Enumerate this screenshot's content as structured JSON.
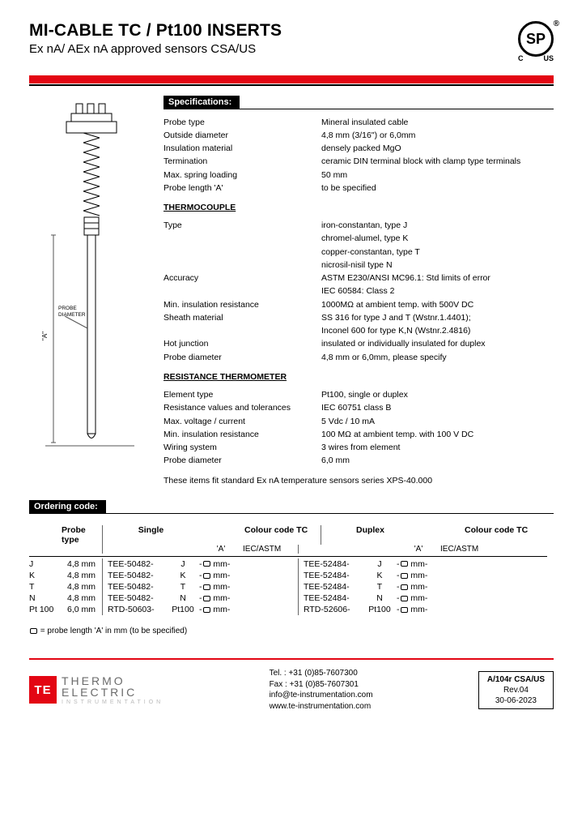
{
  "header": {
    "title": "MI-CABLE TC / Pt100 INSERTS",
    "subtitle": "Ex nA/ AEx nA approved sensors CSA/US",
    "csa_center": "SP",
    "csa_left": "C",
    "csa_right": "US",
    "red": "#e30613"
  },
  "diagram": {
    "label_a": "\"A\"",
    "label_probe": "PROBE",
    "label_diameter": "DIAMETER"
  },
  "sections": {
    "specs_title": "Specifications:",
    "ordering_title": "Ordering code:"
  },
  "specs": {
    "general": [
      {
        "label": "Probe type",
        "value": "Mineral insulated cable"
      },
      {
        "label": "Outside diameter",
        "value": "4,8 mm (3/16\") or 6,0mm"
      },
      {
        "label": "Insulation material",
        "value": "densely packed MgO"
      },
      {
        "label": "Termination",
        "value": "ceramic DIN terminal block with clamp type terminals"
      },
      {
        "label": "Max. spring loading",
        "value": "50 mm"
      },
      {
        "label": "Probe length 'A'",
        "value": "to be specified"
      }
    ],
    "tc_head": "THERMOCOUPLE",
    "tc": [
      {
        "label": "Type",
        "value": "iron-constantan, type J"
      },
      {
        "label": "",
        "value": "chromel-alumel, type K"
      },
      {
        "label": "",
        "value": "copper-constantan, type T"
      },
      {
        "label": "",
        "value": "nicrosil-nisil type N"
      },
      {
        "label": "Accuracy",
        "value": "ASTM E230/ANSI MC96.1: Std limits of error"
      },
      {
        "label": "",
        "value": "IEC 60584: Class 2"
      },
      {
        "label": "Min. insulation resistance",
        "value": "1000MΩ at ambient temp. with 500V DC"
      },
      {
        "label": "Sheath material",
        "value": "SS 316 for type J and T (Wstnr.1.4401);"
      },
      {
        "label": "",
        "value": "Inconel 600 for type K,N (Wstnr.2.4816)"
      },
      {
        "label": "Hot junction",
        "value": "insulated or individually insulated for duplex"
      },
      {
        "label": "Probe diameter",
        "value": "4,8 mm or 6,0mm, please specify"
      }
    ],
    "rtd_head": "RESISTANCE THERMOMETER",
    "rtd": [
      {
        "label": "Element type",
        "value": "Pt100, single or duplex"
      },
      {
        "label": "Resistance values and tolerances",
        "value": "IEC 60751 class B"
      },
      {
        "label": "Max. voltage / current",
        "value": "5 Vdc / 10 mA"
      },
      {
        "label": "Min. insulation resistance",
        "value": "100 MΩ at ambient temp. with 100 V DC"
      },
      {
        "label": "Wiring system",
        "value": "3 wires from element"
      },
      {
        "label": "Probe diameter",
        "value": "6,0 mm"
      }
    ],
    "fit_note": "These items fit standard  Ex nA temperature sensors series XPS-40.000"
  },
  "ordering": {
    "head": {
      "probe": "Probe type",
      "single": "Single",
      "cc": "Colour code TC",
      "duplex": "Duplex"
    },
    "sub": {
      "a": "'A'",
      "iec": "IEC/ASTM"
    },
    "rows": [
      {
        "t": "J",
        "d": "4,8 mm",
        "s": "TEE-50482-",
        "sf": "J",
        "dp": "TEE-52484-",
        "df": "J"
      },
      {
        "t": "K",
        "d": "4,8 mm",
        "s": "TEE-50482-",
        "sf": "K",
        "dp": "TEE-52484-",
        "df": "K"
      },
      {
        "t": "T",
        "d": "4,8 mm",
        "s": "TEE-50482-",
        "sf": "T",
        "dp": "TEE-52484-",
        "df": "T"
      },
      {
        "t": "N",
        "d": "4,8 mm",
        "s": "TEE-50482-",
        "sf": "N",
        "dp": "TEE-52484-",
        "df": "N"
      },
      {
        "t": "Pt 100",
        "d": "6,0 mm",
        "s": "RTD-50603-",
        "sf": "Pt100",
        "dp": "RTD-52606-",
        "df": "Pt100"
      }
    ],
    "mm": "mm-",
    "dash": " -",
    "legend": " = probe length 'A' in mm (to be specified)"
  },
  "footer": {
    "logo_mono": "TE",
    "logo_l1": "THERMO",
    "logo_l2": "ELECTRIC",
    "logo_l3": "INSTRUMENTATION",
    "tel": "Tel. : +31 (0)85-7607300",
    "fax": "Fax : +31 (0)85-7607301",
    "email": "info@te-instrumentation.com",
    "web": "www.te-instrumentation.com",
    "rev1": "A/104r CSA/US",
    "rev2": "Rev.04",
    "rev3": "30-06-2023"
  }
}
